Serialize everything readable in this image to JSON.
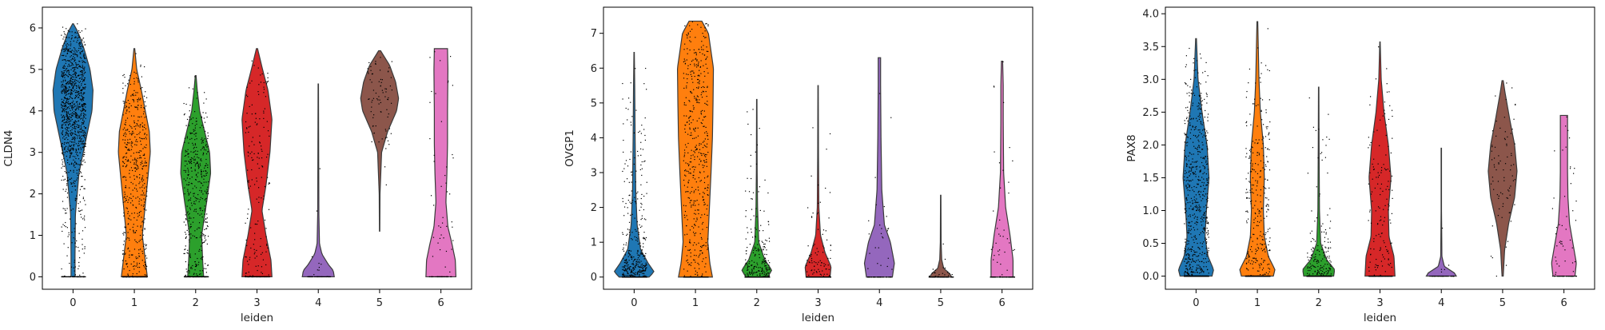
{
  "chart_data": [
    {
      "type": "violin",
      "ylabel": "CLDN4",
      "xlabel": "leiden",
      "categories": [
        "0",
        "1",
        "2",
        "3",
        "4",
        "5",
        "6"
      ],
      "yticks": [
        0,
        1,
        2,
        3,
        4,
        5,
        6
      ],
      "ylim": [
        -0.3,
        6.5
      ],
      "series": [
        {
          "category": "0",
          "color": "#1f77b4",
          "min": 0.0,
          "max": 6.1,
          "profile": [
            [
              0,
              0.1
            ],
            [
              0.5,
              0.1
            ],
            [
              1.5,
              0.12
            ],
            [
              2.5,
              0.3
            ],
            [
              3.2,
              0.6
            ],
            [
              4.0,
              0.95
            ],
            [
              4.5,
              1.0
            ],
            [
              5.0,
              0.85
            ],
            [
              5.5,
              0.55
            ],
            [
              5.9,
              0.25
            ],
            [
              6.1,
              0.02
            ]
          ],
          "n_points": 1200
        },
        {
          "category": "1",
          "color": "#ff7f0e",
          "min": 0.0,
          "max": 5.5,
          "profile": [
            [
              0,
              0.65
            ],
            [
              0.4,
              0.55
            ],
            [
              1.0,
              0.4
            ],
            [
              2.0,
              0.6
            ],
            [
              3.0,
              0.8
            ],
            [
              3.5,
              0.75
            ],
            [
              4.0,
              0.55
            ],
            [
              4.5,
              0.35
            ],
            [
              5.0,
              0.12
            ],
            [
              5.5,
              0.02
            ]
          ],
          "n_points": 800
        },
        {
          "category": "2",
          "color": "#2ca02c",
          "min": 0.0,
          "max": 4.85,
          "profile": [
            [
              0,
              0.4
            ],
            [
              0.4,
              0.35
            ],
            [
              1.0,
              0.3
            ],
            [
              1.8,
              0.55
            ],
            [
              2.5,
              0.75
            ],
            [
              3.0,
              0.7
            ],
            [
              3.5,
              0.45
            ],
            [
              4.0,
              0.2
            ],
            [
              4.5,
              0.08
            ],
            [
              4.85,
              0.02
            ]
          ],
          "n_points": 600
        },
        {
          "category": "3",
          "color": "#d62728",
          "min": 0.0,
          "max": 5.5,
          "profile": [
            [
              0,
              0.75
            ],
            [
              0.4,
              0.7
            ],
            [
              1.0,
              0.45
            ],
            [
              1.6,
              0.25
            ],
            [
              2.2,
              0.45
            ],
            [
              3.0,
              0.65
            ],
            [
              3.8,
              0.75
            ],
            [
              4.5,
              0.55
            ],
            [
              5.0,
              0.28
            ],
            [
              5.5,
              0.03
            ]
          ],
          "n_points": 300
        },
        {
          "category": "4",
          "color": "#9467bd",
          "min": 0.0,
          "max": 4.65,
          "profile": [
            [
              0,
              0.8
            ],
            [
              0.15,
              0.75
            ],
            [
              0.3,
              0.5
            ],
            [
              0.55,
              0.18
            ],
            [
              0.8,
              0.06
            ],
            [
              1.5,
              0.03
            ],
            [
              3.0,
              0.02
            ],
            [
              4.65,
              0.01
            ]
          ],
          "n_points": 60
        },
        {
          "category": "5",
          "color": "#8c564b",
          "min": 1.1,
          "max": 5.45,
          "profile": [
            [
              1.1,
              0.01
            ],
            [
              2.0,
              0.02
            ],
            [
              3.0,
              0.1
            ],
            [
              3.5,
              0.4
            ],
            [
              4.0,
              0.85
            ],
            [
              4.3,
              0.95
            ],
            [
              4.7,
              0.8
            ],
            [
              5.1,
              0.5
            ],
            [
              5.45,
              0.05
            ]
          ],
          "n_points": 80
        },
        {
          "category": "6",
          "color": "#e377c2",
          "min": 0.0,
          "max": 5.5,
          "profile": [
            [
              0,
              0.75
            ],
            [
              0.4,
              0.72
            ],
            [
              0.8,
              0.55
            ],
            [
              1.2,
              0.35
            ],
            [
              1.8,
              0.25
            ],
            [
              2.5,
              0.3
            ],
            [
              3.2,
              0.33
            ],
            [
              4.0,
              0.33
            ],
            [
              5.0,
              0.35
            ],
            [
              5.5,
              0.33
            ]
          ],
          "n_points": 90
        }
      ]
    },
    {
      "type": "violin",
      "ylabel": "OVGP1",
      "xlabel": "leiden",
      "categories": [
        "0",
        "1",
        "2",
        "3",
        "4",
        "5",
        "6"
      ],
      "yticks": [
        0,
        1,
        2,
        3,
        4,
        5,
        6,
        7
      ],
      "ylim": [
        -0.35,
        7.75
      ],
      "series": [
        {
          "category": "0",
          "color": "#1f77b4",
          "min": 0.0,
          "max": 6.45,
          "profile": [
            [
              0,
              0.75
            ],
            [
              0.15,
              1.0
            ],
            [
              0.4,
              0.7
            ],
            [
              0.8,
              0.32
            ],
            [
              1.5,
              0.15
            ],
            [
              2.5,
              0.08
            ],
            [
              4.0,
              0.05
            ],
            [
              5.5,
              0.03
            ],
            [
              6.45,
              0.01
            ]
          ],
          "n_points": 1200
        },
        {
          "category": "1",
          "color": "#ff7f0e",
          "min": 0.0,
          "max": 7.35,
          "profile": [
            [
              0,
              0.85
            ],
            [
              0.4,
              0.72
            ],
            [
              1.0,
              0.62
            ],
            [
              2.0,
              0.7
            ],
            [
              3.0,
              0.78
            ],
            [
              4.0,
              0.85
            ],
            [
              5.0,
              0.88
            ],
            [
              6.0,
              0.9
            ],
            [
              7.0,
              0.65
            ],
            [
              7.35,
              0.32
            ]
          ],
          "n_points": 800
        },
        {
          "category": "2",
          "color": "#2ca02c",
          "min": 0.0,
          "max": 5.1,
          "profile": [
            [
              0,
              0.55
            ],
            [
              0.2,
              0.75
            ],
            [
              0.5,
              0.4
            ],
            [
              1.0,
              0.1
            ],
            [
              2.0,
              0.04
            ],
            [
              3.0,
              0.02
            ],
            [
              5.1,
              0.01
            ]
          ],
          "n_points": 600
        },
        {
          "category": "3",
          "color": "#d62728",
          "min": 0.0,
          "max": 5.5,
          "profile": [
            [
              0,
              0.6
            ],
            [
              0.3,
              0.65
            ],
            [
              0.7,
              0.35
            ],
            [
              1.2,
              0.12
            ],
            [
              2.0,
              0.04
            ],
            [
              3.5,
              0.02
            ],
            [
              5.5,
              0.01
            ]
          ],
          "n_points": 300
        },
        {
          "category": "4",
          "color": "#9467bd",
          "min": 0.0,
          "max": 6.3,
          "profile": [
            [
              0,
              0.65
            ],
            [
              0.4,
              0.75
            ],
            [
              1.0,
              0.55
            ],
            [
              1.5,
              0.25
            ],
            [
              2.5,
              0.12
            ],
            [
              4.0,
              0.08
            ],
            [
              5.5,
              0.06
            ],
            [
              6.3,
              0.06
            ]
          ],
          "n_points": 60
        },
        {
          "category": "5",
          "color": "#8c564b",
          "min": 0.0,
          "max": 2.35,
          "profile": [
            [
              0,
              0.55
            ],
            [
              0.1,
              0.45
            ],
            [
              0.25,
              0.15
            ],
            [
              0.5,
              0.05
            ],
            [
              1.0,
              0.02
            ],
            [
              2.35,
              0.01
            ]
          ],
          "n_points": 80
        },
        {
          "category": "6",
          "color": "#e377c2",
          "min": 0.0,
          "max": 6.2,
          "profile": [
            [
              0,
              0.55
            ],
            [
              0.5,
              0.55
            ],
            [
              1.2,
              0.4
            ],
            [
              2.0,
              0.18
            ],
            [
              3.0,
              0.08
            ],
            [
              4.5,
              0.06
            ],
            [
              5.5,
              0.06
            ],
            [
              6.2,
              0.03
            ]
          ],
          "n_points": 90
        }
      ]
    },
    {
      "type": "violin",
      "ylabel": "PAX8",
      "xlabel": "leiden",
      "categories": [
        "0",
        "1",
        "2",
        "3",
        "4",
        "5",
        "6"
      ],
      "yticks": [
        "0.0",
        "0.5",
        "1.0",
        "1.5",
        "2.0",
        "2.5",
        "3.0",
        "3.5",
        "4.0"
      ],
      "ylim": [
        -0.2,
        4.1
      ],
      "series": [
        {
          "category": "0",
          "color": "#1f77b4",
          "min": 0.0,
          "max": 3.62,
          "profile": [
            [
              0,
              0.8
            ],
            [
              0.1,
              0.88
            ],
            [
              0.3,
              0.6
            ],
            [
              0.6,
              0.45
            ],
            [
              1.0,
              0.52
            ],
            [
              1.5,
              0.65
            ],
            [
              2.0,
              0.55
            ],
            [
              2.5,
              0.3
            ],
            [
              3.0,
              0.1
            ],
            [
              3.62,
              0.02
            ]
          ],
          "n_points": 1200
        },
        {
          "category": "1",
          "color": "#ff7f0e",
          "min": 0.0,
          "max": 3.88,
          "profile": [
            [
              0,
              0.8
            ],
            [
              0.1,
              0.88
            ],
            [
              0.3,
              0.55
            ],
            [
              0.6,
              0.35
            ],
            [
              1.0,
              0.3
            ],
            [
              1.5,
              0.35
            ],
            [
              2.0,
              0.3
            ],
            [
              2.5,
              0.15
            ],
            [
              3.0,
              0.08
            ],
            [
              3.88,
              0.02
            ]
          ],
          "n_points": 800
        },
        {
          "category": "2",
          "color": "#2ca02c",
          "min": 0.0,
          "max": 2.88,
          "profile": [
            [
              0,
              0.75
            ],
            [
              0.1,
              0.8
            ],
            [
              0.25,
              0.4
            ],
            [
              0.5,
              0.1
            ],
            [
              1.0,
              0.04
            ],
            [
              2.0,
              0.02
            ],
            [
              2.88,
              0.01
            ]
          ],
          "n_points": 600
        },
        {
          "category": "3",
          "color": "#d62728",
          "min": 0.0,
          "max": 3.57,
          "profile": [
            [
              0,
              0.75
            ],
            [
              0.3,
              0.7
            ],
            [
              0.6,
              0.45
            ],
            [
              1.0,
              0.42
            ],
            [
              1.5,
              0.55
            ],
            [
              2.0,
              0.42
            ],
            [
              2.5,
              0.2
            ],
            [
              3.0,
              0.06
            ],
            [
              3.57,
              0.01
            ]
          ],
          "n_points": 300
        },
        {
          "category": "4",
          "color": "#9467bd",
          "min": 0.0,
          "max": 1.95,
          "profile": [
            [
              0,
              0.75
            ],
            [
              0.05,
              0.65
            ],
            [
              0.15,
              0.15
            ],
            [
              0.3,
              0.03
            ],
            [
              1.0,
              0.01
            ],
            [
              1.95,
              0.01
            ]
          ],
          "n_points": 60
        },
        {
          "category": "5",
          "color": "#8c564b",
          "min": 0.0,
          "max": 2.98,
          "profile": [
            [
              0,
              0.03
            ],
            [
              0.4,
              0.1
            ],
            [
              0.8,
              0.3
            ],
            [
              1.2,
              0.6
            ],
            [
              1.6,
              0.72
            ],
            [
              2.0,
              0.6
            ],
            [
              2.4,
              0.35
            ],
            [
              2.8,
              0.12
            ],
            [
              2.98,
              0.03
            ]
          ],
          "n_points": 80
        },
        {
          "category": "6",
          "color": "#e377c2",
          "min": 0.0,
          "max": 2.45,
          "profile": [
            [
              0,
              0.55
            ],
            [
              0.2,
              0.62
            ],
            [
              0.5,
              0.45
            ],
            [
              0.8,
              0.28
            ],
            [
              1.2,
              0.2
            ],
            [
              1.6,
              0.18
            ],
            [
              2.0,
              0.18
            ],
            [
              2.45,
              0.18
            ]
          ],
          "n_points": 90
        }
      ]
    }
  ]
}
